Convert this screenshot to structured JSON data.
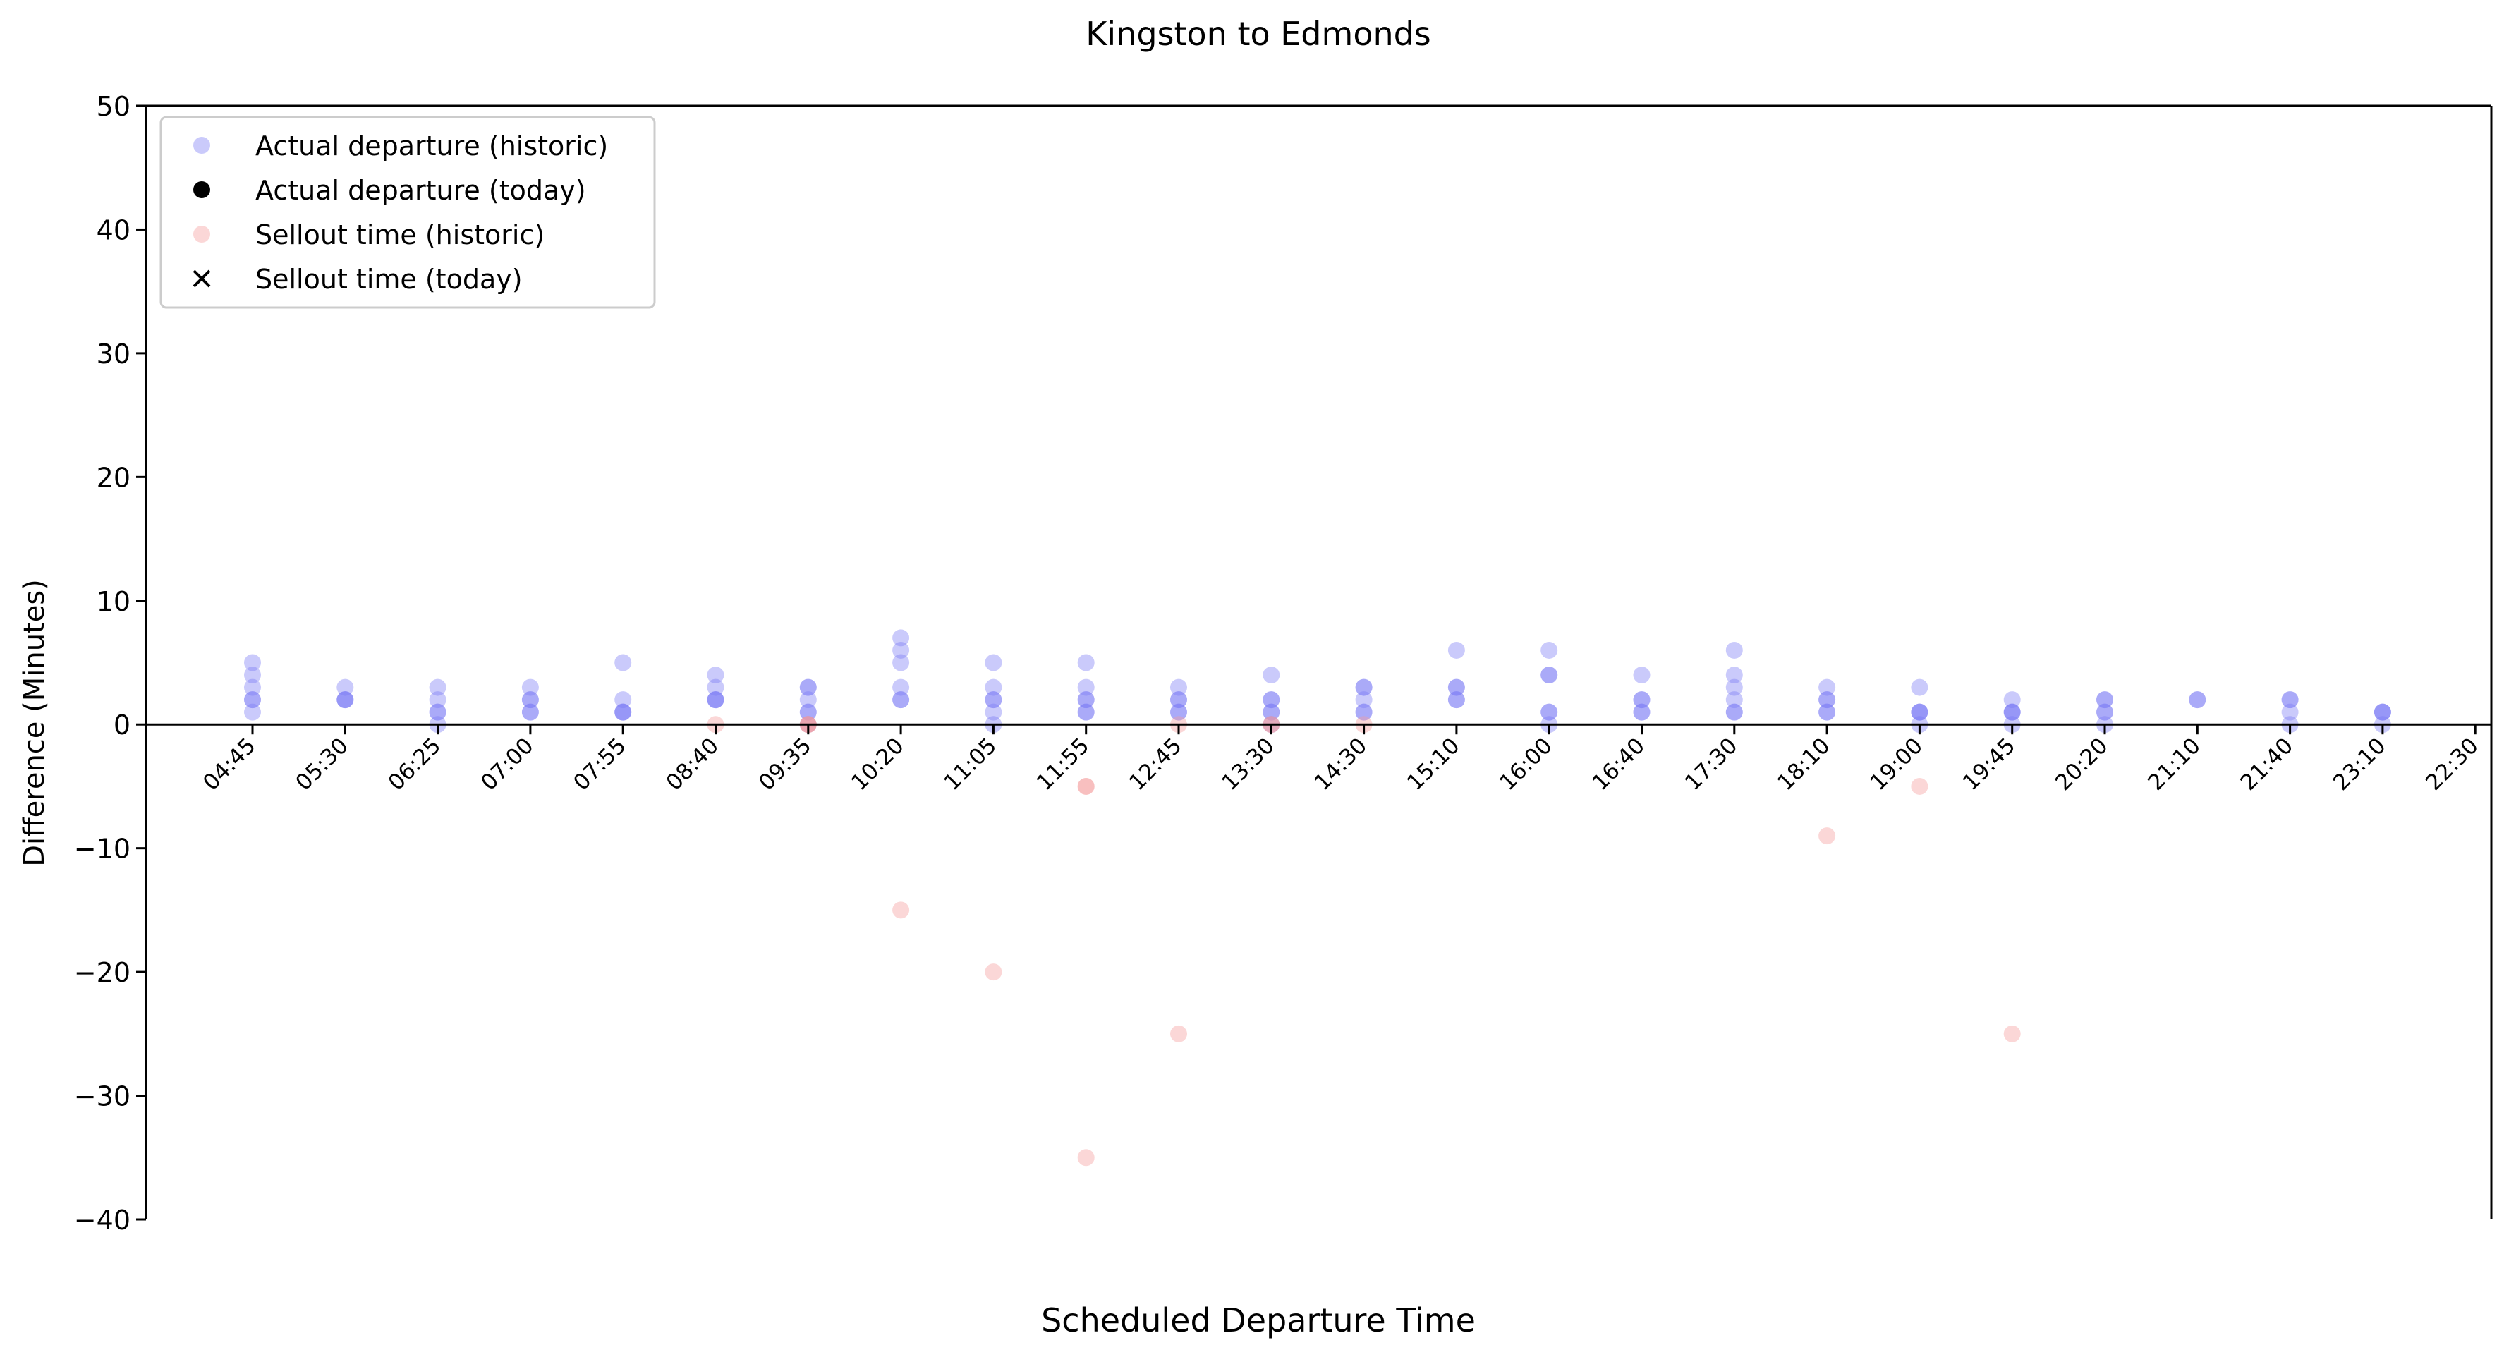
{
  "chart_data": {
    "type": "scatter",
    "title": "Kingston to Edmonds",
    "xlabel": "Scheduled Departure Time",
    "ylabel": "Difference (Minutes)",
    "ylim": [
      -40,
      50
    ],
    "yticks": [
      -40,
      -30,
      -20,
      -10,
      0,
      10,
      20,
      30,
      40,
      50
    ],
    "categories": [
      "04:45",
      "05:30",
      "06:25",
      "07:00",
      "07:55",
      "08:40",
      "09:35",
      "10:20",
      "11:05",
      "11:55",
      "12:45",
      "13:30",
      "14:30",
      "15:10",
      "16:00",
      "16:40",
      "17:30",
      "18:10",
      "19:00",
      "19:45",
      "20:20",
      "21:10",
      "21:40",
      "23:10",
      "22:30"
    ],
    "legend_position": "upper-left",
    "legend": [
      {
        "label": "Actual departure (historic)",
        "marker": "circle",
        "color": "#7b7bf5"
      },
      {
        "label": "Actual departure (today)",
        "marker": "circle",
        "color": "#000000"
      },
      {
        "label": "Sellout time (historic)",
        "marker": "circle",
        "color": "#f59a9a"
      },
      {
        "label": "Sellout time (today)",
        "marker": "x",
        "color": "#000000"
      }
    ],
    "colors": {
      "historic_departure": "#7b7bf5",
      "historic_sellout": "#f59a9a"
    },
    "series": [
      {
        "name": "Actual departure (historic)",
        "points": [
          {
            "x": "04:45",
            "y": [
              5,
              4,
              3,
              2,
              2,
              1
            ]
          },
          {
            "x": "05:30",
            "y": [
              3,
              2,
              2,
              2
            ]
          },
          {
            "x": "06:25",
            "y": [
              3,
              2,
              1,
              1,
              0
            ]
          },
          {
            "x": "07:00",
            "y": [
              3,
              2,
              2,
              1,
              1
            ]
          },
          {
            "x": "07:55",
            "y": [
              5,
              2,
              1,
              1,
              1
            ]
          },
          {
            "x": "08:40",
            "y": [
              4,
              3,
              2,
              2,
              2
            ]
          },
          {
            "x": "09:35",
            "y": [
              3,
              3,
              2,
              1,
              1,
              0
            ]
          },
          {
            "x": "10:20",
            "y": [
              7,
              6,
              5,
              3,
              2,
              2
            ]
          },
          {
            "x": "11:05",
            "y": [
              5,
              3,
              2,
              2,
              1,
              0
            ]
          },
          {
            "x": "11:55",
            "y": [
              5,
              3,
              2,
              2,
              1,
              1
            ]
          },
          {
            "x": "12:45",
            "y": [
              3,
              2,
              2,
              1,
              1
            ]
          },
          {
            "x": "13:30",
            "y": [
              4,
              2,
              2,
              1,
              1,
              0
            ]
          },
          {
            "x": "14:30",
            "y": [
              3,
              3,
              2,
              1,
              1
            ]
          },
          {
            "x": "15:10",
            "y": [
              6,
              3,
              3,
              2,
              2
            ]
          },
          {
            "x": "16:00",
            "y": [
              6,
              4,
              4,
              1,
              1,
              0
            ]
          },
          {
            "x": "16:40",
            "y": [
              4,
              2,
              2,
              1,
              1
            ]
          },
          {
            "x": "17:30",
            "y": [
              6,
              4,
              3,
              2,
              1,
              1
            ]
          },
          {
            "x": "18:10",
            "y": [
              3,
              2,
              2,
              1,
              1
            ]
          },
          {
            "x": "19:00",
            "y": [
              3,
              1,
              1,
              1,
              0
            ]
          },
          {
            "x": "19:45",
            "y": [
              2,
              1,
              1,
              1,
              0
            ]
          },
          {
            "x": "20:20",
            "y": [
              2,
              2,
              1,
              1,
              0
            ]
          },
          {
            "x": "21:10",
            "y": [
              2,
              2
            ]
          },
          {
            "x": "21:40",
            "y": [
              2,
              2,
              1,
              0
            ]
          },
          {
            "x": "23:10",
            "y": [
              1,
              1,
              1,
              0
            ]
          }
        ]
      },
      {
        "name": "Sellout time (historic)",
        "points": [
          {
            "x": "08:40",
            "y": [
              0
            ]
          },
          {
            "x": "09:35",
            "y": [
              0,
              0,
              0
            ]
          },
          {
            "x": "10:20",
            "y": [
              -15
            ]
          },
          {
            "x": "11:05",
            "y": [
              -20
            ]
          },
          {
            "x": "11:55",
            "y": [
              -5,
              -5,
              -35
            ]
          },
          {
            "x": "12:45",
            "y": [
              0,
              -25
            ]
          },
          {
            "x": "13:30",
            "y": [
              0,
              0
            ]
          },
          {
            "x": "14:30",
            "y": [
              0
            ]
          },
          {
            "x": "18:10",
            "y": [
              -9
            ]
          },
          {
            "x": "19:00",
            "y": [
              -5
            ]
          },
          {
            "x": "19:45",
            "y": [
              -25
            ]
          }
        ]
      }
    ]
  }
}
